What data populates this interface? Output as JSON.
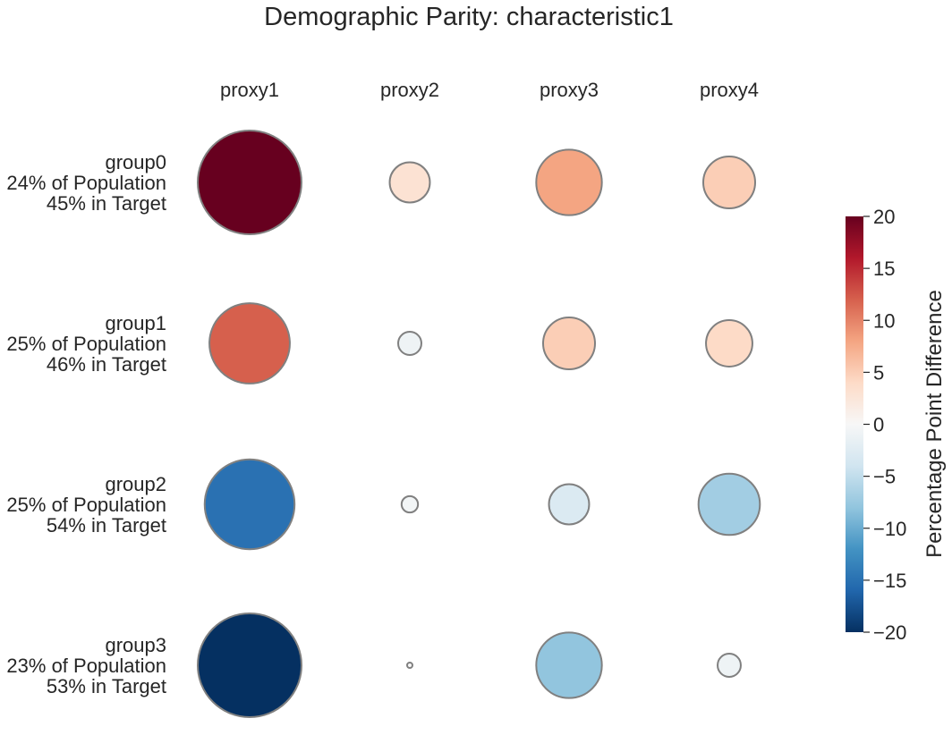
{
  "title": "Demographic Parity: characteristic1",
  "chart_data": {
    "type": "bubble-matrix",
    "title": "Demographic Parity: characteristic1",
    "columns": [
      "proxy1",
      "proxy2",
      "proxy3",
      "proxy4"
    ],
    "rows": [
      {
        "group": "group0",
        "population": "24% of Population",
        "target": "45% in Target"
      },
      {
        "group": "group1",
        "population": "25% of Population",
        "target": "46% in Target"
      },
      {
        "group": "group2",
        "population": "25% of Population",
        "target": "54% in Target"
      },
      {
        "group": "group3",
        "population": "23% of Population",
        "target": "53% in Target"
      }
    ],
    "values": [
      [
        20,
        3,
        8,
        5
      ],
      [
        12,
        -1,
        5,
        4
      ],
      [
        -15,
        -0.5,
        -3,
        -7
      ],
      [
        -20,
        0,
        -8,
        -1
      ]
    ],
    "bubble_size_abs": [
      [
        20,
        3,
        8,
        5
      ],
      [
        12,
        -1,
        5,
        4
      ],
      [
        -15,
        -0.5,
        -3,
        -7
      ],
      [
        -20,
        0,
        -8,
        -1
      ]
    ],
    "colorbar": {
      "label": "Percentage Point Difference",
      "range": [
        -20,
        20
      ],
      "ticks": [
        20,
        15,
        10,
        5,
        0,
        -5,
        -10,
        -15,
        -20
      ],
      "colormap": "RdBu_r"
    },
    "bubble_outline_color": "#808080",
    "grid": false
  }
}
